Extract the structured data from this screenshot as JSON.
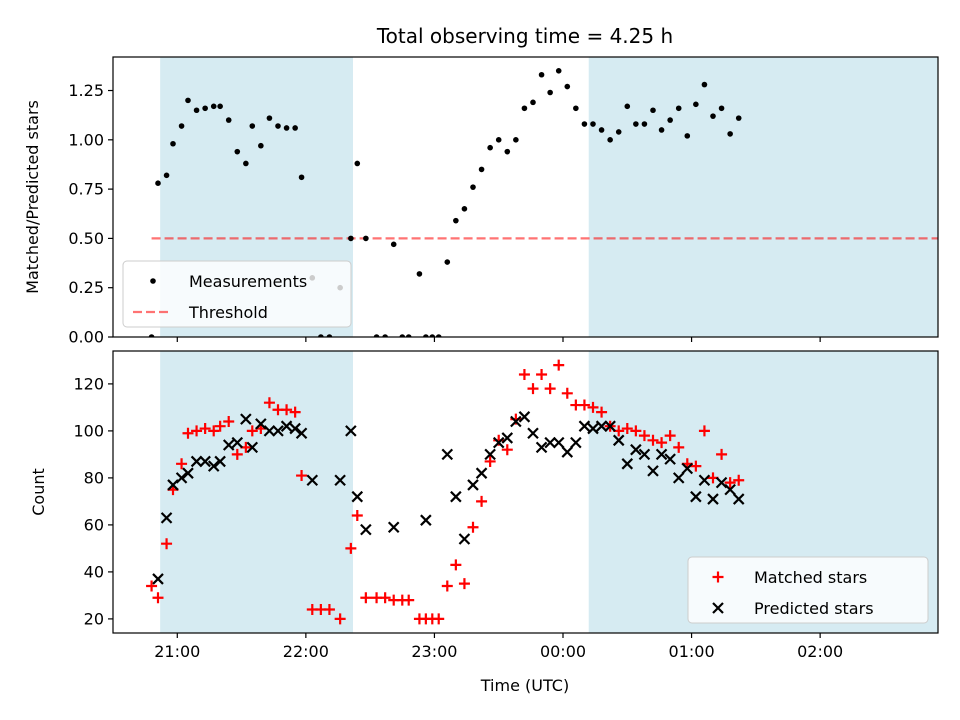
{
  "figure": {
    "title": "Total observing time = 4.25 h",
    "xlabel": "Time (UTC)"
  },
  "chart_data": [
    {
      "type": "scatter",
      "ylabel": "Matched/Predicted stars",
      "ylim": [
        0,
        1.42
      ],
      "yticks": [
        "0.00",
        "0.25",
        "0.50",
        "0.75",
        "1.00",
        "1.25"
      ],
      "xlim": [
        "20:30",
        "02:55"
      ],
      "xticks": [
        "21:00",
        "22:00",
        "23:00",
        "00:00",
        "01:00",
        "02:00"
      ],
      "shaded_intervals": [
        [
          "20:52",
          "22:22"
        ],
        [
          "00:12",
          "02:57"
        ]
      ],
      "shade_color": "#add8e6",
      "threshold": {
        "name": "Threshold",
        "value": 0.5,
        "x_range": [
          "20:48",
          "02:57"
        ],
        "color": "#ff0000"
      },
      "legend": {
        "position": "lower-left",
        "entries": [
          "Measurements",
          "Threshold"
        ]
      },
      "series": [
        {
          "name": "Measurements",
          "color": "#000000",
          "marker": "dot",
          "points": [
            [
              "20:48",
              0.0
            ],
            [
              "20:51",
              0.78
            ],
            [
              "20:55",
              0.82
            ],
            [
              "20:58",
              0.98
            ],
            [
              "21:02",
              1.07
            ],
            [
              "21:05",
              1.2
            ],
            [
              "21:09",
              1.15
            ],
            [
              "21:13",
              1.16
            ],
            [
              "21:17",
              1.17
            ],
            [
              "21:20",
              1.17
            ],
            [
              "21:24",
              1.1
            ],
            [
              "21:28",
              0.94
            ],
            [
              "21:32",
              0.88
            ],
            [
              "21:35",
              1.07
            ],
            [
              "21:39",
              0.97
            ],
            [
              "21:43",
              1.11
            ],
            [
              "21:47",
              1.07
            ],
            [
              "21:51",
              1.06
            ],
            [
              "21:55",
              1.06
            ],
            [
              "21:58",
              0.81
            ],
            [
              "22:03",
              0.3
            ],
            [
              "22:07",
              0.0
            ],
            [
              "22:11",
              0.0
            ],
            [
              "22:16",
              0.25
            ],
            [
              "22:21",
              0.5
            ],
            [
              "22:24",
              0.88
            ],
            [
              "22:28",
              0.5
            ],
            [
              "22:33",
              0.0
            ],
            [
              "22:37",
              0.0
            ],
            [
              "22:41",
              0.47
            ],
            [
              "22:45",
              0.0
            ],
            [
              "22:48",
              0.0
            ],
            [
              "22:53",
              0.32
            ],
            [
              "22:56",
              0.0
            ],
            [
              "22:59",
              0.0
            ],
            [
              "23:02",
              0.0
            ],
            [
              "23:06",
              0.38
            ],
            [
              "23:10",
              0.59
            ],
            [
              "23:14",
              0.65
            ],
            [
              "23:18",
              0.76
            ],
            [
              "23:22",
              0.85
            ],
            [
              "23:26",
              0.96
            ],
            [
              "23:30",
              1.0
            ],
            [
              "23:34",
              0.94
            ],
            [
              "23:38",
              1.0
            ],
            [
              "23:42",
              1.16
            ],
            [
              "23:46",
              1.19
            ],
            [
              "23:50",
              1.33
            ],
            [
              "23:54",
              1.24
            ],
            [
              "23:58",
              1.35
            ],
            [
              "00:02",
              1.27
            ],
            [
              "00:06",
              1.16
            ],
            [
              "00:10",
              1.08
            ],
            [
              "00:14",
              1.08
            ],
            [
              "00:18",
              1.05
            ],
            [
              "00:22",
              1.0
            ],
            [
              "00:26",
              1.04
            ],
            [
              "00:30",
              1.17
            ],
            [
              "00:34",
              1.08
            ],
            [
              "00:38",
              1.08
            ],
            [
              "00:42",
              1.15
            ],
            [
              "00:46",
              1.05
            ],
            [
              "00:50",
              1.1
            ],
            [
              "00:54",
              1.16
            ],
            [
              "00:58",
              1.02
            ],
            [
              "01:02",
              1.18
            ],
            [
              "01:06",
              1.28
            ],
            [
              "01:10",
              1.12
            ],
            [
              "01:14",
              1.16
            ],
            [
              "01:18",
              1.03
            ],
            [
              "01:22",
              1.11
            ]
          ]
        }
      ]
    },
    {
      "type": "scatter",
      "ylabel": "Count",
      "ylim": [
        14,
        134
      ],
      "yticks": [
        "20",
        "40",
        "60",
        "80",
        "100",
        "120"
      ],
      "xlim": [
        "20:30",
        "02:55"
      ],
      "xticks": [
        "21:00",
        "22:00",
        "23:00",
        "00:00",
        "01:00",
        "02:00"
      ],
      "shaded_intervals": [
        [
          "20:52",
          "22:22"
        ],
        [
          "00:12",
          "02:57"
        ]
      ],
      "shade_color": "#add8e6",
      "legend": {
        "position": "lower-right",
        "entries": [
          "Matched stars",
          "Predicted stars"
        ]
      },
      "series": [
        {
          "name": "Matched stars",
          "color": "#ff0000",
          "marker": "plus",
          "points": [
            [
              "20:48",
              34
            ],
            [
              "20:51",
              29
            ],
            [
              "20:55",
              52
            ],
            [
              "20:58",
              75
            ],
            [
              "21:02",
              86
            ],
            [
              "21:05",
              99
            ],
            [
              "21:09",
              100
            ],
            [
              "21:13",
              101
            ],
            [
              "21:17",
              100
            ],
            [
              "21:20",
              102
            ],
            [
              "21:24",
              104
            ],
            [
              "21:28",
              90
            ],
            [
              "21:32",
              93
            ],
            [
              "21:35",
              100
            ],
            [
              "21:39",
              101
            ],
            [
              "21:43",
              112
            ],
            [
              "21:47",
              109
            ],
            [
              "21:51",
              109
            ],
            [
              "21:55",
              108
            ],
            [
              "21:58",
              81
            ],
            [
              "22:03",
              24
            ],
            [
              "22:07",
              24
            ],
            [
              "22:11",
              24
            ],
            [
              "22:16",
              20
            ],
            [
              "22:21",
              50
            ],
            [
              "22:24",
              64
            ],
            [
              "22:28",
              29
            ],
            [
              "22:33",
              29
            ],
            [
              "22:37",
              29
            ],
            [
              "22:41",
              28
            ],
            [
              "22:45",
              28
            ],
            [
              "22:48",
              28
            ],
            [
              "22:53",
              20
            ],
            [
              "22:56",
              20
            ],
            [
              "22:59",
              20
            ],
            [
              "23:02",
              20
            ],
            [
              "23:06",
              34
            ],
            [
              "23:10",
              43
            ],
            [
              "23:14",
              35
            ],
            [
              "23:18",
              59
            ],
            [
              "23:22",
              70
            ],
            [
              "23:26",
              87
            ],
            [
              "23:30",
              96
            ],
            [
              "23:34",
              92
            ],
            [
              "23:38",
              105
            ],
            [
              "23:42",
              124
            ],
            [
              "23:46",
              118
            ],
            [
              "23:50",
              124
            ],
            [
              "23:54",
              118
            ],
            [
              "23:58",
              128
            ],
            [
              "00:02",
              116
            ],
            [
              "00:06",
              111
            ],
            [
              "00:10",
              111
            ],
            [
              "00:14",
              110
            ],
            [
              "00:18",
              108
            ],
            [
              "00:22",
              102
            ],
            [
              "00:26",
              100
            ],
            [
              "00:30",
              101
            ],
            [
              "00:34",
              100
            ],
            [
              "00:38",
              98
            ],
            [
              "00:42",
              96
            ],
            [
              "00:46",
              95
            ],
            [
              "00:50",
              98
            ],
            [
              "00:54",
              93
            ],
            [
              "00:58",
              86
            ],
            [
              "01:02",
              85
            ],
            [
              "01:06",
              100
            ],
            [
              "01:10",
              80
            ],
            [
              "01:14",
              90
            ],
            [
              "01:18",
              78
            ],
            [
              "01:22",
              79
            ]
          ]
        },
        {
          "name": "Predicted stars",
          "color": "#000000",
          "marker": "x",
          "points": [
            [
              "20:51",
              37
            ],
            [
              "20:55",
              63
            ],
            [
              "20:58",
              77
            ],
            [
              "21:02",
              80
            ],
            [
              "21:05",
              82
            ],
            [
              "21:09",
              87
            ],
            [
              "21:13",
              87
            ],
            [
              "21:17",
              85
            ],
            [
              "21:20",
              87
            ],
            [
              "21:24",
              94
            ],
            [
              "21:28",
              95
            ],
            [
              "21:32",
              105
            ],
            [
              "21:35",
              93
            ],
            [
              "21:39",
              103
            ],
            [
              "21:43",
              100
            ],
            [
              "21:47",
              100
            ],
            [
              "21:51",
              102
            ],
            [
              "21:55",
              101
            ],
            [
              "21:58",
              99
            ],
            [
              "22:03",
              79
            ],
            [
              "22:16",
              79
            ],
            [
              "22:21",
              100
            ],
            [
              "22:24",
              72
            ],
            [
              "22:28",
              58
            ],
            [
              "22:41",
              59
            ],
            [
              "22:56",
              62
            ],
            [
              "23:06",
              90
            ],
            [
              "23:10",
              72
            ],
            [
              "23:14",
              54
            ],
            [
              "23:18",
              77
            ],
            [
              "23:22",
              82
            ],
            [
              "23:26",
              90
            ],
            [
              "23:30",
              95
            ],
            [
              "23:34",
              97
            ],
            [
              "23:38",
              104
            ],
            [
              "23:42",
              106
            ],
            [
              "23:46",
              99
            ],
            [
              "23:50",
              93
            ],
            [
              "23:54",
              95
            ],
            [
              "23:58",
              95
            ],
            [
              "00:02",
              91
            ],
            [
              "00:06",
              95
            ],
            [
              "00:10",
              102
            ],
            [
              "00:14",
              101
            ],
            [
              "00:18",
              102
            ],
            [
              "00:22",
              102
            ],
            [
              "00:26",
              96
            ],
            [
              "00:30",
              86
            ],
            [
              "00:34",
              92
            ],
            [
              "00:38",
              90
            ],
            [
              "00:42",
              83
            ],
            [
              "00:46",
              90
            ],
            [
              "00:50",
              88
            ],
            [
              "00:54",
              80
            ],
            [
              "00:58",
              84
            ],
            [
              "01:02",
              72
            ],
            [
              "01:06",
              79
            ],
            [
              "01:10",
              71
            ],
            [
              "01:14",
              78
            ],
            [
              "01:18",
              75
            ],
            [
              "01:22",
              71
            ]
          ]
        }
      ]
    }
  ]
}
